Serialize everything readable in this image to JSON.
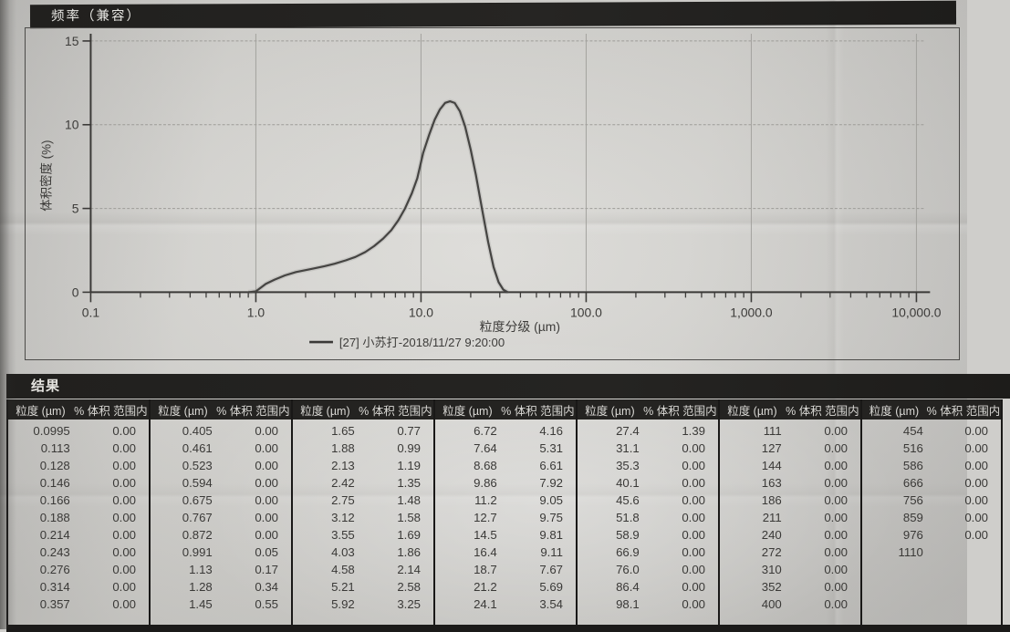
{
  "chart": {
    "title_bar": "频率（兼容）"
  },
  "chart_data": {
    "type": "line",
    "title": "频率（兼容）",
    "xlabel": "粒度分级 (µm)",
    "ylabel": "体积密度 (%)",
    "x_scale": "log",
    "xlim": [
      0.1,
      10000
    ],
    "ylim": [
      0,
      15
    ],
    "y_ticks": [
      0,
      5,
      10,
      15
    ],
    "x_ticks": [
      0.1,
      1,
      10,
      100,
      1000,
      10000
    ],
    "x_tick_labels": [
      "0.1",
      "1.0",
      "10.0",
      "100.0",
      "1,000.0",
      "10,000.0"
    ],
    "grid": true,
    "legend": "[27] 小苏打-2018/11/27 9:20:00",
    "legend_position": "bottom",
    "series": [
      {
        "name": "[27] 小苏打-2018/11/27 9:20:00",
        "x": [
          0.9,
          1.0,
          1.15,
          1.3,
          1.5,
          1.75,
          2.2,
          2.6,
          3.0,
          3.5,
          4.0,
          4.6,
          5.2,
          5.9,
          6.6,
          7.3,
          8.0,
          8.8,
          9.5,
          10.3,
          11.2,
          12.1,
          13.0,
          14.0,
          15.0,
          16.0,
          17.2,
          18.5,
          20.0,
          21.5,
          23.5,
          25.5,
          27.5,
          29.5,
          31.5,
          33.5
        ],
        "y": [
          0,
          0.05,
          0.5,
          0.75,
          1.0,
          1.2,
          1.4,
          1.55,
          1.7,
          1.9,
          2.1,
          2.4,
          2.75,
          3.2,
          3.7,
          4.3,
          5.0,
          5.9,
          6.8,
          8.3,
          9.4,
          10.3,
          10.9,
          11.3,
          11.4,
          11.3,
          10.8,
          9.9,
          8.5,
          7.0,
          4.9,
          3.0,
          1.5,
          0.6,
          0.15,
          0
        ]
      }
    ]
  },
  "table": {
    "title": "结果",
    "col_headers": [
      "粒度 (µm)",
      "% 体积 范围内"
    ],
    "groups": [
      [
        [
          "0.0995",
          "0.00"
        ],
        [
          "0.113",
          "0.00"
        ],
        [
          "0.128",
          "0.00"
        ],
        [
          "0.146",
          "0.00"
        ],
        [
          "0.166",
          "0.00"
        ],
        [
          "0.188",
          "0.00"
        ],
        [
          "0.214",
          "0.00"
        ],
        [
          "0.243",
          "0.00"
        ],
        [
          "0.276",
          "0.00"
        ],
        [
          "0.314",
          "0.00"
        ],
        [
          "0.357",
          "0.00"
        ]
      ],
      [
        [
          "0.405",
          "0.00"
        ],
        [
          "0.461",
          "0.00"
        ],
        [
          "0.523",
          "0.00"
        ],
        [
          "0.594",
          "0.00"
        ],
        [
          "0.675",
          "0.00"
        ],
        [
          "0.767",
          "0.00"
        ],
        [
          "0.872",
          "0.00"
        ],
        [
          "0.991",
          "0.05"
        ],
        [
          "1.13",
          "0.17"
        ],
        [
          "1.28",
          "0.34"
        ],
        [
          "1.45",
          "0.55"
        ]
      ],
      [
        [
          "1.65",
          "0.77"
        ],
        [
          "1.88",
          "0.99"
        ],
        [
          "2.13",
          "1.19"
        ],
        [
          "2.42",
          "1.35"
        ],
        [
          "2.75",
          "1.48"
        ],
        [
          "3.12",
          "1.58"
        ],
        [
          "3.55",
          "1.69"
        ],
        [
          "4.03",
          "1.86"
        ],
        [
          "4.58",
          "2.14"
        ],
        [
          "5.21",
          "2.58"
        ],
        [
          "5.92",
          "3.25"
        ]
      ],
      [
        [
          "6.72",
          "4.16"
        ],
        [
          "7.64",
          "5.31"
        ],
        [
          "8.68",
          "6.61"
        ],
        [
          "9.86",
          "7.92"
        ],
        [
          "11.2",
          "9.05"
        ],
        [
          "12.7",
          "9.75"
        ],
        [
          "14.5",
          "9.81"
        ],
        [
          "16.4",
          "9.11"
        ],
        [
          "18.7",
          "7.67"
        ],
        [
          "21.2",
          "5.69"
        ],
        [
          "24.1",
          "3.54"
        ]
      ],
      [
        [
          "27.4",
          "1.39"
        ],
        [
          "31.1",
          "0.00"
        ],
        [
          "35.3",
          "0.00"
        ],
        [
          "40.1",
          "0.00"
        ],
        [
          "45.6",
          "0.00"
        ],
        [
          "51.8",
          "0.00"
        ],
        [
          "58.9",
          "0.00"
        ],
        [
          "66.9",
          "0.00"
        ],
        [
          "76.0",
          "0.00"
        ],
        [
          "86.4",
          "0.00"
        ],
        [
          "98.1",
          "0.00"
        ]
      ],
      [
        [
          "111",
          "0.00"
        ],
        [
          "127",
          "0.00"
        ],
        [
          "144",
          "0.00"
        ],
        [
          "163",
          "0.00"
        ],
        [
          "186",
          "0.00"
        ],
        [
          "211",
          "0.00"
        ],
        [
          "240",
          "0.00"
        ],
        [
          "272",
          "0.00"
        ],
        [
          "310",
          "0.00"
        ],
        [
          "352",
          "0.00"
        ],
        [
          "400",
          "0.00"
        ]
      ],
      [
        [
          "454",
          "0.00"
        ],
        [
          "516",
          "0.00"
        ],
        [
          "586",
          "0.00"
        ],
        [
          "666",
          "0.00"
        ],
        [
          "756",
          "0.00"
        ],
        [
          "859",
          "0.00"
        ],
        [
          "976",
          "0.00"
        ],
        [
          "1110",
          ""
        ]
      ]
    ]
  }
}
